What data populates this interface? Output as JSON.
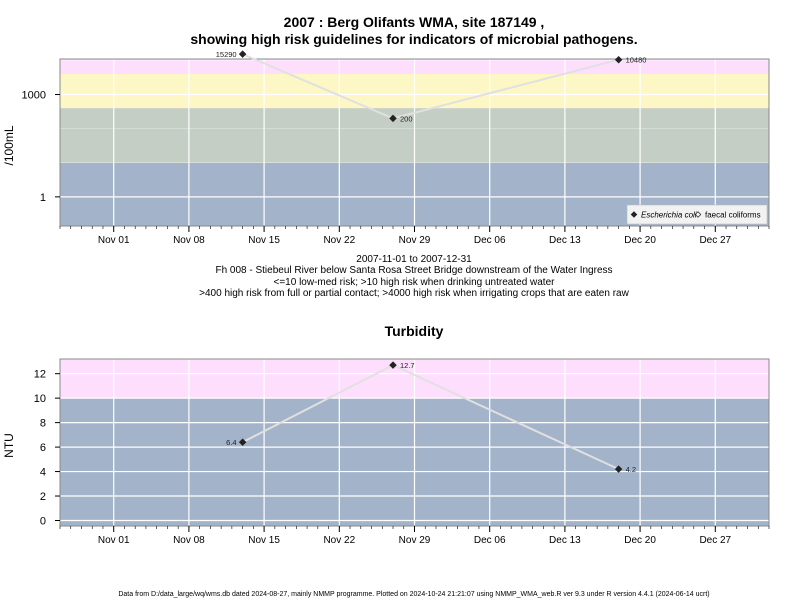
{
  "title_line1": "2007 : Berg Olifants WMA, site 187149 ,",
  "title_line2": "showing high risk guidelines for indicators of microbial pathogens.",
  "caption": [
    "2007-11-01 to 2007-12-31",
    "Fh 008 - Stiebeul River below Santa Rosa Street Bridge downstream of the Water Ingress",
    "<=10 low-med risk; >10 high risk when drinking untreated water",
    ">400 high risk from full or partial contact; >4000 high risk when irrigating crops that are eaten raw"
  ],
  "footer": "Data from D:/data_large/wq/wms.db dated 2024-08-27, mainly NMMP programme. Plotted on 2024-10-24 21:21:07 using NMMP_WMA_web.R ver 9.3 under R version 4.4.1 (2024-06-14 ucrt)",
  "colors": {
    "band_low": "#a3b4ca",
    "band_med": "#c5cec5",
    "band_yellow": "#fdf7c5",
    "band_pink": "#fddffd",
    "grid": "#ffffff",
    "line": "#e0e0e0",
    "point": "#222222",
    "frame": "#888888"
  },
  "chart_data": [
    {
      "type": "line",
      "title": "",
      "ylabel": "/100mL",
      "y_scale": "log",
      "ylim": [
        0.14,
        11000
      ],
      "x_range": [
        "2007-10-27",
        "2008-01-01"
      ],
      "x_ticks": [
        {
          "date": "2007-11-01",
          "label": "Nov 01"
        },
        {
          "date": "2007-11-08",
          "label": "Nov 08"
        },
        {
          "date": "2007-11-15",
          "label": "Nov 15"
        },
        {
          "date": "2007-11-22",
          "label": "Nov 22"
        },
        {
          "date": "2007-11-29",
          "label": "Nov 29"
        },
        {
          "date": "2007-12-06",
          "label": "Dec 06"
        },
        {
          "date": "2007-12-13",
          "label": "Dec 13"
        },
        {
          "date": "2007-12-20",
          "label": "Dec 20"
        },
        {
          "date": "2007-12-27",
          "label": "Dec 27"
        }
      ],
      "y_ticks": [
        {
          "value": 1,
          "label": "1"
        },
        {
          "value": 1000,
          "label": "1000"
        }
      ],
      "bands": [
        {
          "from": 0.14,
          "to": 10,
          "color": "band_low"
        },
        {
          "from": 10,
          "to": 400,
          "color": "band_med"
        },
        {
          "from": 400,
          "to": 4000,
          "color": "band_yellow"
        },
        {
          "from": 4000,
          "to": 11000,
          "color": "band_pink"
        }
      ],
      "series": [
        {
          "name": "Escherichia coli",
          "marker": "filled-diamond",
          "points": [
            {
              "x": "2007-11-13",
              "y": 15290,
              "label": "15290",
              "label_side": "left"
            },
            {
              "x": "2007-11-27",
              "y": 200,
              "label": "200",
              "label_side": "right"
            },
            {
              "x": "2007-12-18",
              "y": 10480,
              "label": "10480",
              "label_side": "right"
            }
          ]
        },
        {
          "name": "faecal coliforms",
          "marker": "open-diamond",
          "points": []
        }
      ],
      "legend": {
        "placement": "bottom-right",
        "items": [
          {
            "label": "Escherichia coli",
            "marker": "filled-diamond",
            "italic": true
          },
          {
            "label": "faecal coliforms",
            "marker": "open-diamond",
            "italic": false
          }
        ]
      },
      "grid": true
    },
    {
      "type": "line",
      "title": "Turbidity",
      "ylabel": "NTU",
      "y_scale": "linear",
      "ylim": [
        -0.45,
        13.2
      ],
      "x_range": [
        "2007-10-27",
        "2008-01-01"
      ],
      "x_ticks": [
        {
          "date": "2007-11-01",
          "label": "Nov 01"
        },
        {
          "date": "2007-11-08",
          "label": "Nov 08"
        },
        {
          "date": "2007-11-15",
          "label": "Nov 15"
        },
        {
          "date": "2007-11-22",
          "label": "Nov 22"
        },
        {
          "date": "2007-11-29",
          "label": "Nov 29"
        },
        {
          "date": "2007-12-06",
          "label": "Dec 06"
        },
        {
          "date": "2007-12-13",
          "label": "Dec 13"
        },
        {
          "date": "2007-12-20",
          "label": "Dec 20"
        },
        {
          "date": "2007-12-27",
          "label": "Dec 27"
        }
      ],
      "y_ticks": [
        {
          "value": 0,
          "label": "0"
        },
        {
          "value": 2,
          "label": "2"
        },
        {
          "value": 4,
          "label": "4"
        },
        {
          "value": 6,
          "label": "6"
        },
        {
          "value": 8,
          "label": "8"
        },
        {
          "value": 10,
          "label": "10"
        },
        {
          "value": 12,
          "label": "12"
        }
      ],
      "bands": [
        {
          "from": -0.45,
          "to": 10,
          "color": "band_low"
        },
        {
          "from": 10,
          "to": 13.2,
          "color": "band_pink"
        }
      ],
      "series": [
        {
          "name": "",
          "marker": "filled-diamond",
          "points": [
            {
              "x": "2007-11-13",
              "y": 6.4,
              "label": "6.4",
              "label_side": "left"
            },
            {
              "x": "2007-11-27",
              "y": 12.7,
              "label": "12.7",
              "label_side": "right"
            },
            {
              "x": "2007-12-18",
              "y": 4.2,
              "label": "4.2",
              "label_side": "right"
            }
          ]
        }
      ],
      "grid": true
    }
  ]
}
